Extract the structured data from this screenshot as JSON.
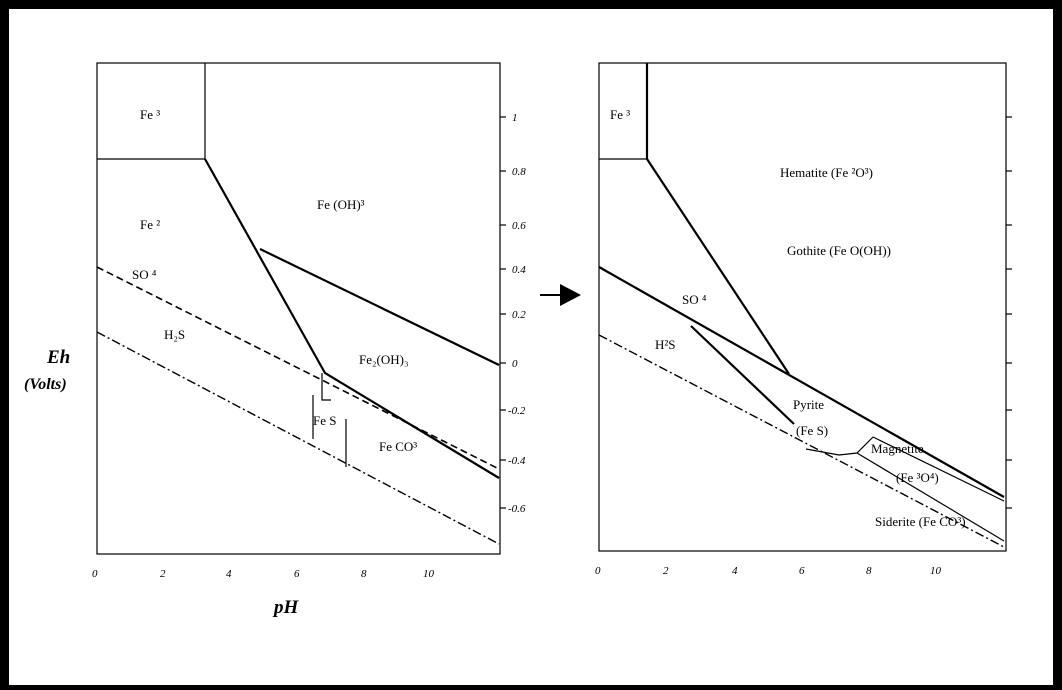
{
  "y_axis_label": "Eh",
  "y_axis_unit": "(Volts)",
  "x_axis_label": "pH",
  "left": {
    "x_ticks": [
      "0",
      "2",
      "4",
      "6",
      "8",
      "10"
    ],
    "y_ticks": [
      "1",
      "0.8",
      "0.6",
      "0.4",
      "0.2",
      "0",
      "-0.2",
      "-0.4",
      "-0.6"
    ],
    "regions": {
      "fe3": "Fe ³",
      "fe2": "Fe ²",
      "feoh3": "Fe (OH)³",
      "fe2oh3": "Fe₂(OH)₃",
      "fes": "Fe S",
      "feco3": "Fe CO³",
      "so4": "SO ⁴",
      "h2s": "H₂S"
    }
  },
  "right": {
    "x_ticks": [
      "0",
      "2",
      "4",
      "6",
      "8",
      "10"
    ],
    "regions": {
      "fe3": "Fe ³",
      "hematite": "Hematite (Fe ²O³)",
      "gothite": "Gothite (Fe O(OH))",
      "so4": "SO ⁴",
      "h2s": "H²S",
      "pyrite": "Pyrite",
      "pyrite_formula": "(Fe S)",
      "magnetite": "Magnetite",
      "magnetite_formula": "(Fe ³O⁴)",
      "siderite": "Siderite (Fe CO³)"
    }
  }
}
